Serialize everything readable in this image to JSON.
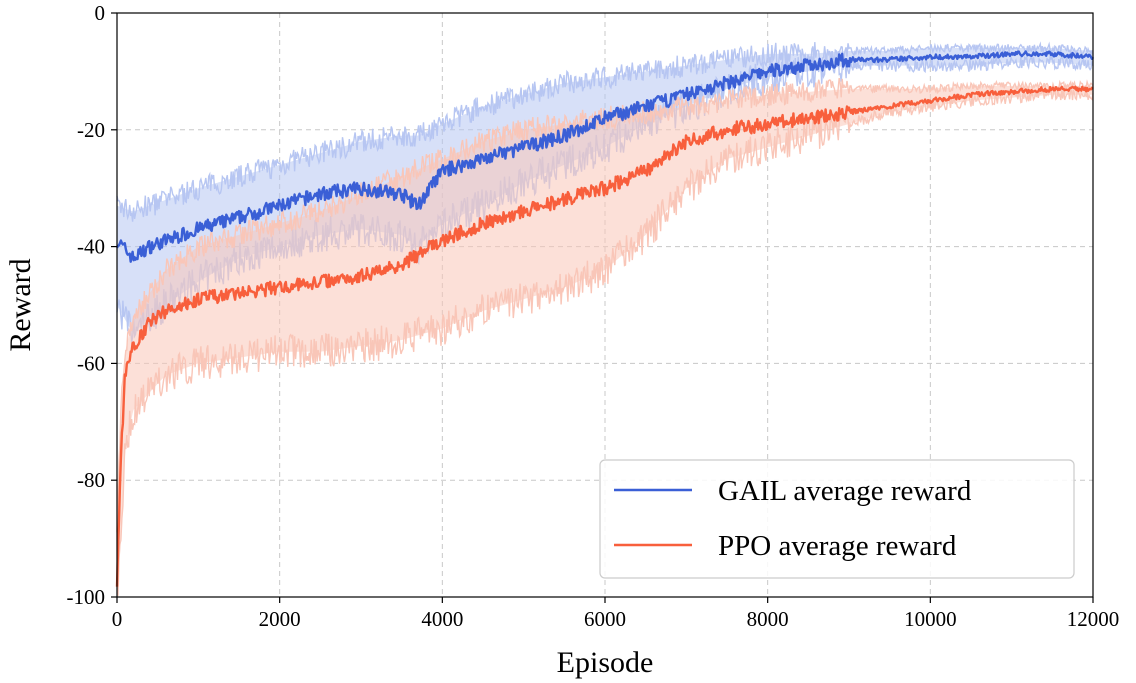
{
  "chart_data": {
    "type": "line",
    "title": "",
    "xlabel": "Episode",
    "ylabel": "Reward",
    "xlim": [
      0,
      12000
    ],
    "ylim": [
      -100,
      0
    ],
    "xticks": [
      0,
      2000,
      4000,
      6000,
      8000,
      10000,
      12000
    ],
    "yticks": [
      -100,
      -80,
      -60,
      -40,
      -20,
      0
    ],
    "xtick_labels": [
      "0",
      "2000",
      "4000",
      "6000",
      "8000",
      "10000",
      "12000"
    ],
    "ytick_labels": [
      "-100",
      "-80",
      "-60",
      "-40",
      "-20",
      "0"
    ],
    "grid": true,
    "legend_position": "bottom-right",
    "series": [
      {
        "name": "GAIL average reward",
        "color": "#3a5fd6",
        "band_color": "#b7c6f2",
        "x": [
          0,
          200,
          400,
          600,
          800,
          1000,
          1500,
          2000,
          2500,
          3000,
          3500,
          3700,
          4000,
          4500,
          5000,
          5500,
          6000,
          6500,
          7000,
          7500,
          8000,
          8500,
          9000,
          9500,
          10000,
          10500,
          11000,
          11500,
          12000
        ],
        "mean": [
          -39,
          -42,
          -40,
          -39,
          -38,
          -37,
          -35,
          -33,
          -31,
          -30,
          -31,
          -33,
          -27,
          -25,
          -23,
          -21,
          -18,
          -16,
          -14,
          -12,
          -10,
          -9,
          -8,
          -8,
          -7.5,
          -7.5,
          -7,
          -7,
          -7.5
        ],
        "upper": [
          -33,
          -34,
          -33,
          -32,
          -31,
          -30,
          -28,
          -26,
          -24,
          -22,
          -21,
          -21,
          -19,
          -16,
          -14,
          -12,
          -11,
          -10,
          -9,
          -8,
          -7,
          -7,
          -6.5,
          -6.5,
          -6,
          -6,
          -6,
          -6,
          -6.5
        ],
        "lower": [
          -50,
          -55,
          -52,
          -50,
          -48,
          -46,
          -42,
          -40,
          -38,
          -37,
          -38,
          -40,
          -36,
          -33,
          -29,
          -26,
          -23,
          -19,
          -16,
          -13,
          -11,
          -10,
          -9,
          -9,
          -9,
          -9,
          -8.5,
          -8.5,
          -9
        ]
      },
      {
        "name": "PPO average reward",
        "color": "#f85f3c",
        "band_color": "#f9c6b8",
        "x": [
          0,
          50,
          100,
          200,
          400,
          600,
          1000,
          1500,
          2000,
          2500,
          3000,
          3500,
          4000,
          4500,
          5000,
          5500,
          6000,
          6500,
          7000,
          7500,
          8000,
          8500,
          9000,
          9500,
          10000,
          10500,
          11000,
          11500,
          12000
        ],
        "mean": [
          -98,
          -75,
          -62,
          -57,
          -53,
          -51,
          -49,
          -48,
          -47,
          -46,
          -45,
          -43,
          -39,
          -36,
          -34,
          -32,
          -30,
          -27,
          -22,
          -20,
          -19,
          -18,
          -17,
          -16,
          -15,
          -14,
          -13.5,
          -13,
          -13
        ],
        "upper": [
          -90,
          -66,
          -58,
          -52,
          -48,
          -44,
          -40,
          -38,
          -36,
          -34,
          -31,
          -28,
          -25,
          -22,
          -20,
          -19,
          -18,
          -17,
          -16,
          -15,
          -14,
          -13.5,
          -13,
          -13,
          -13,
          -12.5,
          -12.5,
          -12.5,
          -12.5
        ],
        "lower": [
          -100,
          -90,
          -75,
          -68,
          -65,
          -62,
          -60,
          -59,
          -58,
          -58,
          -57,
          -56,
          -54,
          -51,
          -49,
          -47,
          -44,
          -38,
          -30,
          -25,
          -23,
          -21,
          -19,
          -17,
          -16,
          -15,
          -14.5,
          -14,
          -14
        ]
      }
    ]
  }
}
